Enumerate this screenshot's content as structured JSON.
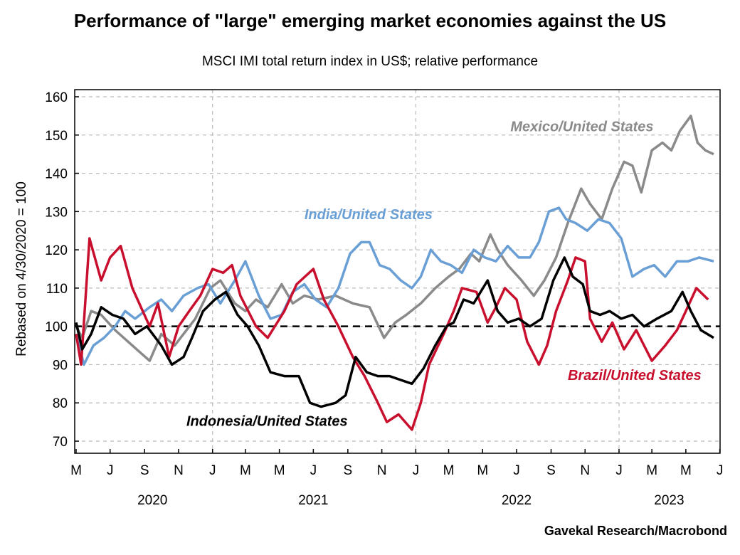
{
  "chart_data": {
    "type": "line",
    "title": "Performance of \"large\" emerging market economies against the US",
    "subtitle": "MSCI IMI total return index in US$; relative performance",
    "ylabel": "Rebased on 4/30/2020 = 100",
    "source": "Gavekal Research/Macrobond",
    "ylim": [
      70,
      160
    ],
    "yticks": [
      70,
      80,
      90,
      100,
      110,
      120,
      130,
      140,
      150,
      160
    ],
    "xlim": [
      "2020-05-01",
      "2023-06-20"
    ],
    "xticks": [
      {
        "date": "2020-05-01",
        "label": "M"
      },
      {
        "date": "2020-07-01",
        "label": "J"
      },
      {
        "date": "2020-09-01",
        "label": "S"
      },
      {
        "date": "2020-11-01",
        "label": "N"
      },
      {
        "date": "2021-01-01",
        "label": "J"
      },
      {
        "date": "2021-03-01",
        "label": "M"
      },
      {
        "date": "2021-05-01",
        "label": "M"
      },
      {
        "date": "2021-07-01",
        "label": "J"
      },
      {
        "date": "2021-09-01",
        "label": "S"
      },
      {
        "date": "2021-11-01",
        "label": "N"
      },
      {
        "date": "2022-01-01",
        "label": "J"
      },
      {
        "date": "2022-03-01",
        "label": "M"
      },
      {
        "date": "2022-05-01",
        "label": "M"
      },
      {
        "date": "2022-07-01",
        "label": "J"
      },
      {
        "date": "2022-09-01",
        "label": "S"
      },
      {
        "date": "2022-11-01",
        "label": "N"
      },
      {
        "date": "2023-01-01",
        "label": "J"
      },
      {
        "date": "2023-03-01",
        "label": "M"
      },
      {
        "date": "2023-05-01",
        "label": "M"
      },
      {
        "date": "2023-07-01",
        "label": "J"
      }
    ],
    "years": [
      {
        "label": "2020",
        "date": "2020-09-15"
      },
      {
        "label": "2021",
        "date": "2021-07-01"
      },
      {
        "label": "2022",
        "date": "2022-07-01"
      },
      {
        "label": "2023",
        "date": "2023-04-01"
      }
    ],
    "grid": true,
    "reference_line": 100,
    "series": [
      {
        "name": "Mexico/United States",
        "color": "#8a8a8a",
        "data": [
          [
            "2020-05-01",
            100
          ],
          [
            "2020-05-12",
            97
          ],
          [
            "2020-05-28",
            104
          ],
          [
            "2020-06-15",
            103
          ],
          [
            "2020-07-10",
            99
          ],
          [
            "2020-08-10",
            95
          ],
          [
            "2020-09-10",
            91
          ],
          [
            "2020-10-01",
            98
          ],
          [
            "2020-10-25",
            95
          ],
          [
            "2020-12-01",
            102
          ],
          [
            "2020-12-28",
            110
          ],
          [
            "2021-01-15",
            112
          ],
          [
            "2021-02-10",
            106
          ],
          [
            "2021-03-01",
            104
          ],
          [
            "2021-03-20",
            107
          ],
          [
            "2021-04-10",
            105
          ],
          [
            "2021-05-05",
            111
          ],
          [
            "2021-05-25",
            106
          ],
          [
            "2021-06-15",
            108
          ],
          [
            "2021-07-10",
            107
          ],
          [
            "2021-08-10",
            108
          ],
          [
            "2021-09-10",
            106
          ],
          [
            "2021-10-10",
            105
          ],
          [
            "2021-11-05",
            97
          ],
          [
            "2021-11-25",
            101
          ],
          [
            "2021-12-15",
            103
          ],
          [
            "2022-01-10",
            106
          ],
          [
            "2022-02-05",
            110
          ],
          [
            "2022-03-01",
            113
          ],
          [
            "2022-03-20",
            115
          ],
          [
            "2022-04-10",
            119
          ],
          [
            "2022-04-25",
            117
          ],
          [
            "2022-05-15",
            124
          ],
          [
            "2022-05-28",
            120
          ],
          [
            "2022-06-15",
            116
          ],
          [
            "2022-07-10",
            112
          ],
          [
            "2022-08-01",
            108
          ],
          [
            "2022-08-20",
            112
          ],
          [
            "2022-09-10",
            118
          ],
          [
            "2022-10-01",
            127
          ],
          [
            "2022-10-25",
            136
          ],
          [
            "2022-11-10",
            132
          ],
          [
            "2022-12-01",
            128
          ],
          [
            "2022-12-20",
            136
          ],
          [
            "2023-01-10",
            143
          ],
          [
            "2023-01-25",
            142
          ],
          [
            "2023-02-10",
            135
          ],
          [
            "2023-03-01",
            146
          ],
          [
            "2023-03-20",
            148
          ],
          [
            "2023-04-05",
            146
          ],
          [
            "2023-04-20",
            151
          ],
          [
            "2023-05-10",
            155
          ],
          [
            "2023-05-22",
            148
          ],
          [
            "2023-06-05",
            146
          ],
          [
            "2023-06-20",
            145
          ]
        ]
      },
      {
        "name": "India/United States",
        "color": "#6a9fd6",
        "data": [
          [
            "2020-05-01",
            98
          ],
          [
            "2020-05-15",
            90
          ],
          [
            "2020-06-01",
            95
          ],
          [
            "2020-06-20",
            97
          ],
          [
            "2020-07-10",
            100
          ],
          [
            "2020-07-28",
            104
          ],
          [
            "2020-08-15",
            102
          ],
          [
            "2020-09-10",
            105
          ],
          [
            "2020-10-01",
            107
          ],
          [
            "2020-10-20",
            104
          ],
          [
            "2020-11-10",
            108
          ],
          [
            "2020-12-05",
            110
          ],
          [
            "2020-12-25",
            111
          ],
          [
            "2021-01-15",
            106
          ],
          [
            "2021-02-10",
            112
          ],
          [
            "2021-03-01",
            117
          ],
          [
            "2021-03-25",
            108
          ],
          [
            "2021-04-15",
            102
          ],
          [
            "2021-05-05",
            103
          ],
          [
            "2021-05-25",
            109
          ],
          [
            "2021-06-15",
            111
          ],
          [
            "2021-07-05",
            107
          ],
          [
            "2021-07-25",
            105
          ],
          [
            "2021-08-15",
            110
          ],
          [
            "2021-09-05",
            119
          ],
          [
            "2021-09-25",
            122
          ],
          [
            "2021-10-10",
            122
          ],
          [
            "2021-10-28",
            116
          ],
          [
            "2021-11-15",
            115
          ],
          [
            "2021-12-05",
            112
          ],
          [
            "2021-12-25",
            110
          ],
          [
            "2022-01-10",
            113
          ],
          [
            "2022-01-28",
            120
          ],
          [
            "2022-02-15",
            117
          ],
          [
            "2022-03-05",
            116
          ],
          [
            "2022-03-25",
            114
          ],
          [
            "2022-04-15",
            120
          ],
          [
            "2022-05-05",
            118
          ],
          [
            "2022-05-25",
            117
          ],
          [
            "2022-06-15",
            121
          ],
          [
            "2022-07-05",
            118
          ],
          [
            "2022-07-25",
            118
          ],
          [
            "2022-08-10",
            122
          ],
          [
            "2022-08-28",
            130
          ],
          [
            "2022-09-15",
            131
          ],
          [
            "2022-09-28",
            128
          ],
          [
            "2022-10-15",
            127
          ],
          [
            "2022-11-05",
            125
          ],
          [
            "2022-11-25",
            128
          ],
          [
            "2022-12-15",
            127
          ],
          [
            "2023-01-05",
            123
          ],
          [
            "2023-01-25",
            113
          ],
          [
            "2023-02-15",
            115
          ],
          [
            "2023-03-05",
            116
          ],
          [
            "2023-03-25",
            113
          ],
          [
            "2023-04-15",
            117
          ],
          [
            "2023-05-05",
            117
          ],
          [
            "2023-05-25",
            118
          ],
          [
            "2023-06-20",
            117
          ]
        ]
      },
      {
        "name": "Brazil/United States",
        "color": "#c8102e",
        "data": [
          [
            "2020-05-01",
            98
          ],
          [
            "2020-05-10",
            90
          ],
          [
            "2020-05-25",
            123
          ],
          [
            "2020-06-15",
            112
          ],
          [
            "2020-07-01",
            118
          ],
          [
            "2020-07-20",
            121
          ],
          [
            "2020-08-10",
            110
          ],
          [
            "2020-09-10",
            100
          ],
          [
            "2020-09-25",
            106
          ],
          [
            "2020-10-15",
            92
          ],
          [
            "2020-11-01",
            100
          ],
          [
            "2020-11-20",
            104
          ],
          [
            "2020-12-10",
            108
          ],
          [
            "2021-01-01",
            115
          ],
          [
            "2021-01-20",
            114
          ],
          [
            "2021-02-05",
            116
          ],
          [
            "2021-02-20",
            108
          ],
          [
            "2021-03-20",
            100
          ],
          [
            "2021-04-10",
            97
          ],
          [
            "2021-05-10",
            104
          ],
          [
            "2021-06-01",
            111
          ],
          [
            "2021-07-01",
            115
          ],
          [
            "2021-07-20",
            107
          ],
          [
            "2021-08-15",
            100
          ],
          [
            "2021-09-10",
            92
          ],
          [
            "2021-10-01",
            87
          ],
          [
            "2021-10-25",
            80
          ],
          [
            "2021-11-10",
            75
          ],
          [
            "2021-12-01",
            77
          ],
          [
            "2021-12-25",
            73
          ],
          [
            "2022-01-10",
            80
          ],
          [
            "2022-01-25",
            90
          ],
          [
            "2022-02-20",
            98
          ],
          [
            "2022-03-10",
            104
          ],
          [
            "2022-03-25",
            110
          ],
          [
            "2022-04-20",
            109
          ],
          [
            "2022-05-10",
            101
          ],
          [
            "2022-05-25",
            105
          ],
          [
            "2022-06-10",
            110
          ],
          [
            "2022-07-01",
            107
          ],
          [
            "2022-07-20",
            96
          ],
          [
            "2022-08-10",
            90
          ],
          [
            "2022-08-25",
            95
          ],
          [
            "2022-09-10",
            104
          ],
          [
            "2022-10-01",
            112
          ],
          [
            "2022-10-15",
            118
          ],
          [
            "2022-11-01",
            117
          ],
          [
            "2022-11-10",
            102
          ],
          [
            "2022-12-01",
            96
          ],
          [
            "2022-12-20",
            101
          ],
          [
            "2023-01-10",
            94
          ],
          [
            "2023-02-01",
            99
          ],
          [
            "2023-03-01",
            91
          ],
          [
            "2023-03-25",
            95
          ],
          [
            "2023-04-15",
            99
          ],
          [
            "2023-05-01",
            104
          ],
          [
            "2023-05-20",
            110
          ],
          [
            "2023-06-10",
            107
          ]
        ]
      },
      {
        "name": "Indonesia/United States",
        "color": "#000000",
        "data": [
          [
            "2020-05-01",
            101
          ],
          [
            "2020-05-12",
            94
          ],
          [
            "2020-05-28",
            98
          ],
          [
            "2020-06-15",
            105
          ],
          [
            "2020-07-05",
            103
          ],
          [
            "2020-07-25",
            102
          ],
          [
            "2020-08-15",
            98
          ],
          [
            "2020-09-05",
            100
          ],
          [
            "2020-10-01",
            95
          ],
          [
            "2020-10-20",
            90
          ],
          [
            "2020-11-10",
            92
          ],
          [
            "2020-11-25",
            97
          ],
          [
            "2020-12-15",
            104
          ],
          [
            "2021-01-05",
            107
          ],
          [
            "2021-01-25",
            109
          ],
          [
            "2021-02-15",
            103
          ],
          [
            "2021-03-05",
            100
          ],
          [
            "2021-03-25",
            95
          ],
          [
            "2021-04-15",
            88
          ],
          [
            "2021-05-10",
            87
          ],
          [
            "2021-06-05",
            87
          ],
          [
            "2021-06-25",
            80
          ],
          [
            "2021-07-15",
            79
          ],
          [
            "2021-08-10",
            80
          ],
          [
            "2021-08-28",
            82
          ],
          [
            "2021-09-15",
            92
          ],
          [
            "2021-10-05",
            88
          ],
          [
            "2021-10-25",
            87
          ],
          [
            "2021-11-15",
            87
          ],
          [
            "2021-12-05",
            86
          ],
          [
            "2021-12-25",
            85
          ],
          [
            "2022-01-15",
            89
          ],
          [
            "2022-02-05",
            95
          ],
          [
            "2022-02-25",
            100
          ],
          [
            "2022-03-10",
            101
          ],
          [
            "2022-03-28",
            107
          ],
          [
            "2022-04-15",
            106
          ],
          [
            "2022-05-10",
            112
          ],
          [
            "2022-05-28",
            104
          ],
          [
            "2022-06-15",
            101
          ],
          [
            "2022-07-05",
            102
          ],
          [
            "2022-07-25",
            100
          ],
          [
            "2022-08-15",
            102
          ],
          [
            "2022-09-05",
            112
          ],
          [
            "2022-09-25",
            118
          ],
          [
            "2022-10-10",
            113
          ],
          [
            "2022-10-28",
            111
          ],
          [
            "2022-11-10",
            104
          ],
          [
            "2022-11-28",
            103
          ],
          [
            "2022-12-15",
            104
          ],
          [
            "2023-01-05",
            102
          ],
          [
            "2023-01-25",
            103
          ],
          [
            "2023-02-15",
            100
          ],
          [
            "2023-03-10",
            102
          ],
          [
            "2023-04-05",
            104
          ],
          [
            "2023-04-25",
            109
          ],
          [
            "2023-05-10",
            104
          ],
          [
            "2023-05-28",
            99
          ],
          [
            "2023-06-20",
            97
          ]
        ]
      }
    ],
    "series_labels": [
      {
        "text": "Mexico/United States",
        "date": "2022-06-20",
        "value": 151
      },
      {
        "text": "India/United States",
        "date": "2021-06-15",
        "value": 128
      },
      {
        "text": "Brazil/United States",
        "date": "2022-10-01",
        "value": 86
      },
      {
        "text": "Indonesia/United States",
        "date": "2020-11-15",
        "value": 74
      }
    ]
  }
}
